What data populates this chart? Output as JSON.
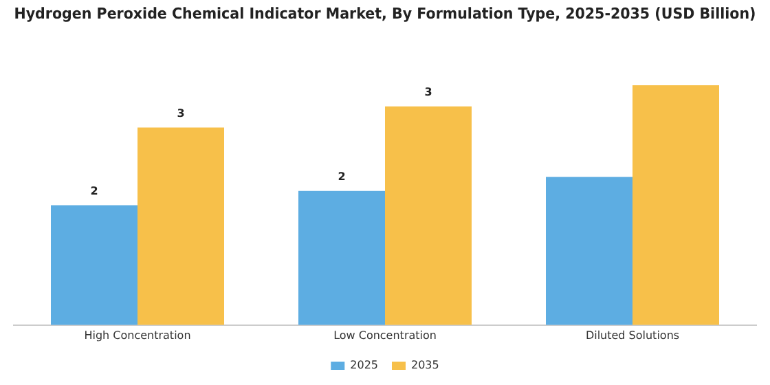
{
  "chart_data": {
    "type": "bar",
    "title": "Hydrogen Peroxide Chemical Indicator Market, By Formulation Type, 2025-2035 (USD Billion)",
    "categories": [
      "High Concentration",
      "Low Concentration",
      "Diluted Solutions"
    ],
    "tick_labels": "x",
    "legend": "bottom",
    "grid": false,
    "series": [
      {
        "name": "2025",
        "color": "#5dade2",
        "values": [
          1.7,
          1.9,
          2.1
        ],
        "value_labels": [
          "2",
          "2",
          null
        ]
      },
      {
        "name": "2035",
        "color": "#f7c04a",
        "values": [
          2.8,
          3.1,
          3.4
        ],
        "value_labels": [
          "3",
          "3",
          null
        ]
      }
    ]
  }
}
